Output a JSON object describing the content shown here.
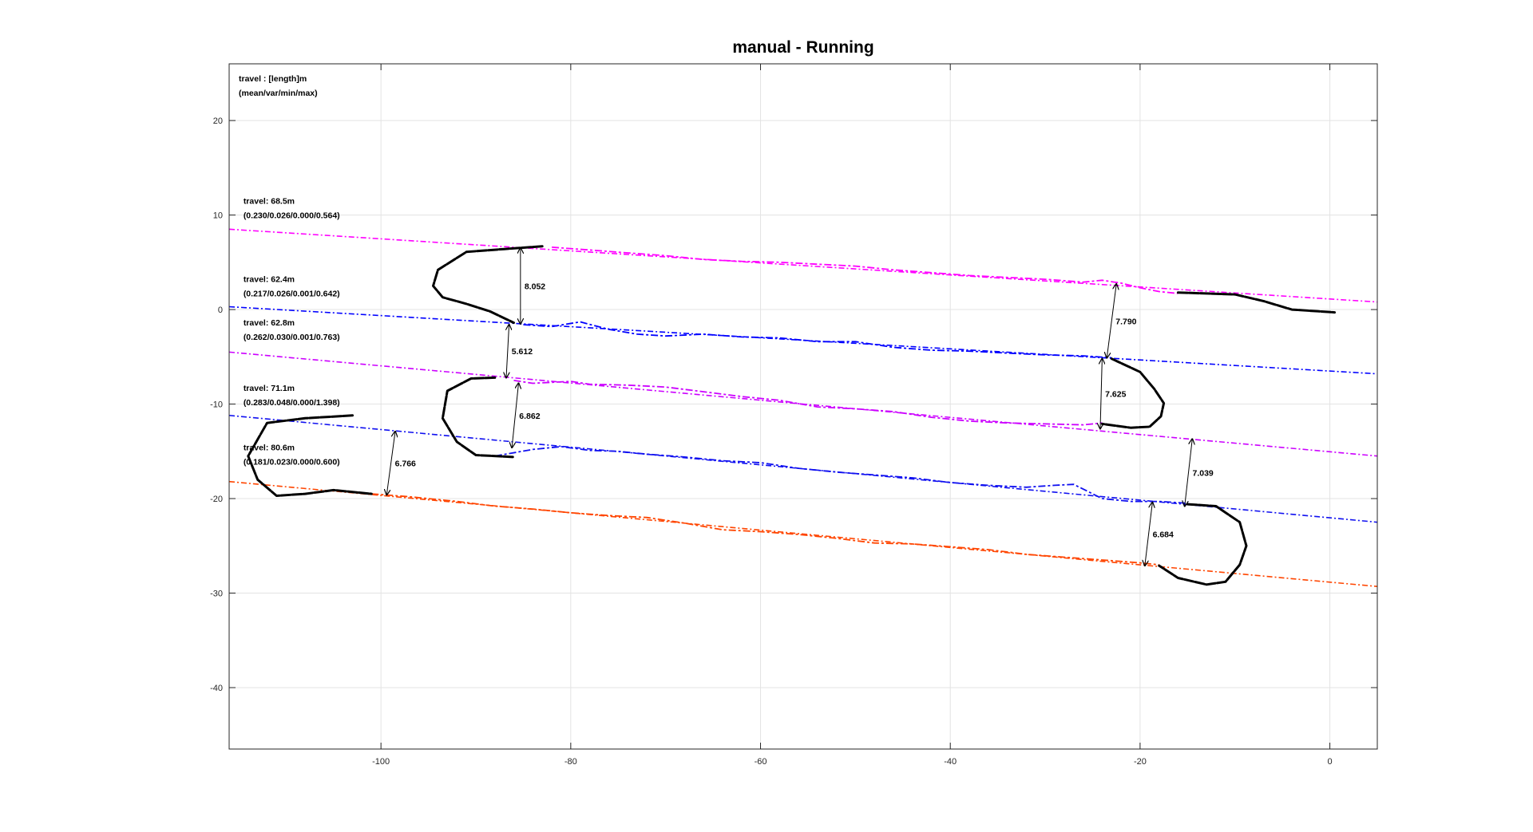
{
  "chart_data": {
    "type": "line",
    "title": "manual - Running",
    "xlabel": "",
    "ylabel": "",
    "xlim": [
      -116,
      5
    ],
    "ylim": [
      -46.5,
      26
    ],
    "xticks": [
      -100,
      -80,
      -60,
      -40,
      -20,
      0
    ],
    "yticks": [
      20,
      10,
      0,
      -10,
      -20,
      -30,
      -40
    ],
    "grid": true,
    "header_annotation": [
      "travel : [length]m",
      "(mean/var/min/max)"
    ],
    "colors": {
      "magenta": "#ff00ff",
      "violet": "#cc00ff",
      "blue": "#0000ff",
      "blue2": "#1010f0",
      "orange": "#ff4500",
      "turn": "#000000"
    },
    "fit_lines": [
      {
        "color": "magenta",
        "x": [
          -116,
          5
        ],
        "y": [
          8.5,
          0.8
        ]
      },
      {
        "color": "blue",
        "x": [
          -116,
          5
        ],
        "y": [
          0.3,
          -6.8
        ]
      },
      {
        "color": "violet",
        "x": [
          -116,
          5
        ],
        "y": [
          -4.5,
          -15.5
        ]
      },
      {
        "color": "blue2",
        "x": [
          -116,
          5
        ],
        "y": [
          -11.2,
          -22.5
        ]
      },
      {
        "color": "orange",
        "x": [
          -116,
          5
        ],
        "y": [
          -18.2,
          -29.3
        ]
      }
    ],
    "series": [
      {
        "color": "magenta",
        "x": [
          -82,
          -78,
          -74,
          -70,
          -66,
          -62,
          -58,
          -54,
          -50,
          -46,
          -42,
          -38,
          -34,
          -30,
          -26,
          -24,
          -22,
          -20,
          -18,
          -16
        ],
        "y": [
          6.6,
          6.3,
          6.0,
          5.7,
          5.3,
          5.1,
          5.0,
          4.8,
          4.6,
          4.2,
          3.9,
          3.6,
          3.4,
          3.2,
          2.9,
          3.1,
          2.8,
          2.3,
          1.9,
          1.7
        ]
      },
      {
        "color": "blue",
        "x": [
          -85,
          -82,
          -79,
          -76,
          -73,
          -70,
          -66,
          -62,
          -58,
          -54,
          -50,
          -46,
          -42,
          -38,
          -34,
          -30,
          -26,
          -23
        ],
        "y": [
          -1.6,
          -1.8,
          -1.3,
          -2.1,
          -2.6,
          -2.8,
          -2.6,
          -2.9,
          -3.0,
          -3.4,
          -3.4,
          -4.0,
          -4.3,
          -4.4,
          -4.6,
          -4.8,
          -4.9,
          -5.1
        ]
      },
      {
        "color": "violet",
        "x": [
          -86,
          -84,
          -82,
          -80,
          -78,
          -74,
          -70,
          -66,
          -62,
          -58,
          -54,
          -50,
          -46,
          -42,
          -38,
          -34,
          -30,
          -26,
          -24
        ],
        "y": [
          -7.5,
          -7.8,
          -7.7,
          -7.6,
          -7.9,
          -8.0,
          -8.2,
          -8.7,
          -9.2,
          -9.6,
          -10.3,
          -10.5,
          -10.8,
          -11.4,
          -11.8,
          -12.0,
          -12.1,
          -12.2,
          -12.0
        ]
      },
      {
        "color": "blue2",
        "x": [
          -88,
          -84,
          -81,
          -78,
          -75,
          -72,
          -68,
          -64,
          -60,
          -56,
          -52,
          -48,
          -44,
          -40,
          -36,
          -32,
          -29,
          -27,
          -24,
          -21,
          -18,
          -15
        ],
        "y": [
          -15.5,
          -14.8,
          -14.5,
          -14.9,
          -15.0,
          -15.3,
          -15.6,
          -16.0,
          -16.2,
          -16.8,
          -17.2,
          -17.5,
          -17.8,
          -18.3,
          -18.6,
          -18.8,
          -18.6,
          -18.5,
          -20.0,
          -20.3,
          -20.3,
          -20.5
        ]
      },
      {
        "color": "orange",
        "x": [
          -101,
          -97,
          -92,
          -88,
          -84,
          -80,
          -76,
          -72,
          -68,
          -64,
          -60,
          -56,
          -52,
          -48,
          -44,
          -40,
          -36,
          -32,
          -28,
          -24,
          -20,
          -18
        ],
        "y": [
          -19.5,
          -19.8,
          -20.3,
          -20.8,
          -21.1,
          -21.5,
          -21.8,
          -22.0,
          -22.6,
          -23.3,
          -23.5,
          -23.8,
          -24.2,
          -24.7,
          -24.8,
          -25.1,
          -25.4,
          -25.9,
          -26.2,
          -26.5,
          -26.8,
          -27.0
        ]
      }
    ],
    "turns": [
      {
        "color": "turn",
        "x": [
          -83,
          -87,
          -91,
          -94,
          -94.5,
          -93.5,
          -91,
          -88.5,
          -86
        ],
        "y": [
          6.7,
          6.4,
          6.1,
          4.2,
          2.5,
          1.3,
          0.6,
          -0.2,
          -1.4
        ]
      },
      {
        "color": "turn",
        "x": [
          -23,
          -20,
          -18.5,
          -17.5,
          -17.8,
          -19,
          -21,
          -24
        ],
        "y": [
          -5.2,
          -6.6,
          -8.4,
          -9.9,
          -11.3,
          -12.4,
          -12.5,
          -12.1
        ]
      },
      {
        "color": "turn",
        "x": [
          -88,
          -90.5,
          -93,
          -93.5,
          -92,
          -90,
          -86
        ],
        "y": [
          -7.2,
          -7.3,
          -8.6,
          -11.5,
          -14.0,
          -15.4,
          -15.6
        ]
      },
      {
        "color": "turn",
        "x": [
          -15,
          -12,
          -9.5,
          -8.8,
          -9.5,
          -11,
          -13,
          -16,
          -18
        ],
        "y": [
          -20.6,
          -20.8,
          -22.5,
          -25.0,
          -27.0,
          -28.8,
          -29.1,
          -28.4,
          -27.1
        ]
      },
      {
        "color": "turn",
        "x": [
          -103,
          -108,
          -112,
          -114,
          -113,
          -111,
          -108,
          -105,
          -101
        ],
        "y": [
          -11.2,
          -11.5,
          -12.0,
          -15.5,
          -18.0,
          -19.7,
          -19.5,
          -19.1,
          -19.5
        ]
      },
      {
        "color": "turn",
        "x": [
          -16,
          -13,
          -10,
          -7,
          -4,
          -1,
          0.5
        ],
        "y": [
          1.8,
          1.7,
          1.6,
          0.9,
          0.0,
          -0.2,
          -0.3
        ]
      }
    ],
    "annotations": [
      {
        "text": [
          "travel: 68.5m",
          "(0.230/0.026/0.000/0.564)"
        ],
        "x": -114.5,
        "y": 11.2
      },
      {
        "text": [
          "travel: 62.4m",
          "(0.217/0.026/0.001/0.642)"
        ],
        "x": -114.5,
        "y": 2.9
      },
      {
        "text": [
          "travel: 62.8m",
          "(0.262/0.030/0.001/0.763)"
        ],
        "x": -114.5,
        "y": -1.7
      },
      {
        "text": [
          "travel: 71.1m",
          "(0.283/0.048/0.000/1.398)"
        ],
        "x": -114.5,
        "y": -8.6
      },
      {
        "text": [
          "travel: 80.6m",
          "(0.181/0.023/0.000/0.600)"
        ],
        "x": -114.5,
        "y": -14.9
      }
    ],
    "distances": [
      {
        "value": "8.052",
        "x1": -85.3,
        "y1": 6.5,
        "x2": -85.3,
        "y2": -1.5
      },
      {
        "value": "5.612",
        "x1": -86.5,
        "y1": -1.6,
        "x2": -86.8,
        "y2": -7.2
      },
      {
        "value": "6.862",
        "x1": -85.5,
        "y1": -7.8,
        "x2": -86.2,
        "y2": -14.6
      },
      {
        "value": "6.766",
        "x1": -98.5,
        "y1": -12.9,
        "x2": -99.4,
        "y2": -19.6
      },
      {
        "value": "7.790",
        "x1": -22.5,
        "y1": 2.7,
        "x2": -23.5,
        "y2": -5.1
      },
      {
        "value": "7.625",
        "x1": -24.0,
        "y1": -5.2,
        "x2": -24.2,
        "y2": -12.6
      },
      {
        "value": "7.039",
        "x1": -14.5,
        "y1": -13.7,
        "x2": -15.3,
        "y2": -20.8
      },
      {
        "value": "6.684",
        "x1": -18.7,
        "y1": -20.4,
        "x2": -19.5,
        "y2": -27.1
      }
    ]
  }
}
